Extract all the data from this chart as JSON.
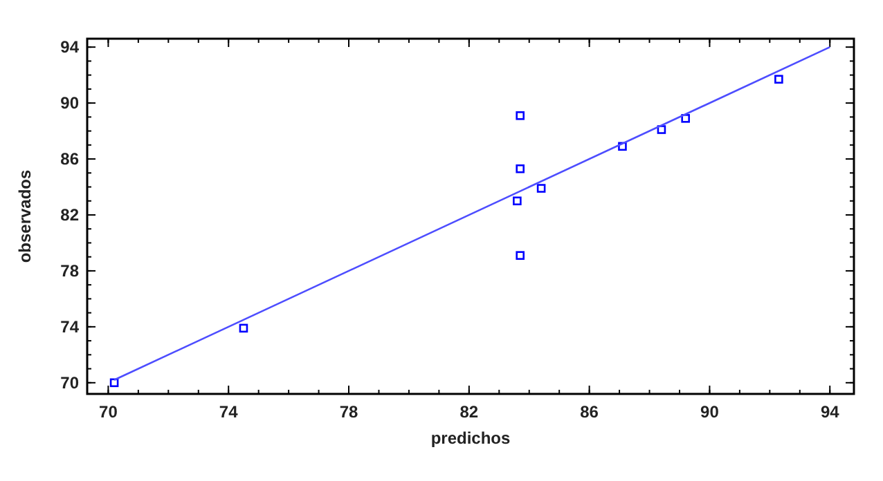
{
  "chart_data": {
    "type": "scatter",
    "xlabel": "predichos",
    "ylabel": "observados",
    "xlim": [
      69.3,
      94.8
    ],
    "ylim": [
      69.2,
      94.6
    ],
    "xticks": [
      70,
      74,
      78,
      82,
      86,
      90,
      94
    ],
    "yticks": [
      70,
      74,
      78,
      82,
      86,
      90,
      94
    ],
    "grid": false,
    "marker": "square",
    "series": [
      {
        "color": "#0000ff",
        "x": [
          70.2,
          74.5,
          83.7,
          83.7,
          83.6,
          84.4,
          83.7,
          87.1,
          88.4,
          89.2,
          92.3
        ],
        "values": [
          70,
          73.9,
          89.1,
          85.3,
          83,
          83.9,
          79.1,
          86.9,
          88.1,
          88.9,
          91.7
        ]
      },
      {
        "type": "line",
        "color": "#4d4dff",
        "line_style": "solid",
        "marker": "none",
        "x": [
          70.2,
          94
        ],
        "values": [
          70.2,
          94
        ]
      }
    ]
  }
}
